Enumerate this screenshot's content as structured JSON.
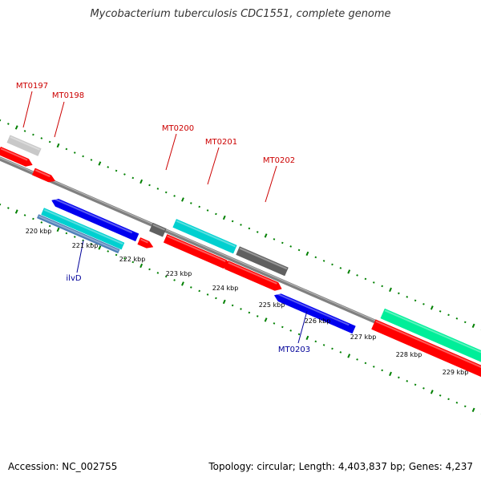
{
  "title": "Mycobacterium tuberculosis CDC1551, complete genome",
  "footer": {
    "accession": "Accession: NC_002755",
    "summary": "Topology: circular; Length: 4,403,837 bp; Genes: 4,237"
  },
  "colors": {
    "backbone": "#808080",
    "tick": "#008000",
    "label_red": "#cc0000",
    "label_blue": "#000099",
    "red": "#ff0000",
    "blue": "#0000ee",
    "cyan": "#00d0d0",
    "gray": "#606060",
    "lightgray": "#c8c8c8",
    "teal": "#00ee99",
    "steelblue": "#4e7fb8"
  },
  "scale_labels": [
    {
      "key": "t220",
      "text": "220 kbp"
    },
    {
      "key": "t221",
      "text": "221 kbp"
    },
    {
      "key": "t222",
      "text": "222 kbp"
    },
    {
      "key": "t223",
      "text": "223 kbp"
    },
    {
      "key": "t224",
      "text": "224 kbp"
    },
    {
      "key": "t225",
      "text": "225 kbp"
    },
    {
      "key": "t226",
      "text": "226 kbp"
    },
    {
      "key": "t227",
      "text": "227 kbp"
    },
    {
      "key": "t228",
      "text": "228 kbp"
    },
    {
      "key": "t229",
      "text": "229 kbp"
    }
  ],
  "gene_labels": [
    {
      "key": "g197",
      "text": "MT0197",
      "color": "red"
    },
    {
      "key": "g198",
      "text": "MT0198",
      "color": "red"
    },
    {
      "key": "g200",
      "text": "MT0200",
      "color": "red"
    },
    {
      "key": "g201",
      "text": "MT0201",
      "color": "red"
    },
    {
      "key": "g202",
      "text": "MT0202",
      "color": "red"
    },
    {
      "key": "gilvD",
      "text": "ilvD",
      "color": "blue"
    },
    {
      "key": "g203",
      "text": "MT0203",
      "color": "blue"
    }
  ],
  "features": [
    {
      "key": "f1",
      "color": "lightgray",
      "arrow": false
    },
    {
      "key": "f2",
      "color": "red",
      "arrow": true
    },
    {
      "key": "f3",
      "color": "red",
      "arrow": true
    },
    {
      "key": "f4",
      "color": "blue",
      "arrow": true
    },
    {
      "key": "f5",
      "color": "cyan",
      "arrow": false
    },
    {
      "key": "f6",
      "color": "steelblue",
      "arrow": false
    },
    {
      "key": "f7",
      "color": "gray",
      "arrow": false
    },
    {
      "key": "f8",
      "color": "red",
      "arrow": true
    },
    {
      "key": "f9",
      "color": "cyan",
      "arrow": false
    },
    {
      "key": "f10",
      "color": "red",
      "arrow": true
    },
    {
      "key": "f11",
      "color": "gray",
      "arrow": false
    },
    {
      "key": "f12",
      "color": "red",
      "arrow": true
    },
    {
      "key": "f13",
      "color": "blue",
      "arrow": true
    },
    {
      "key": "f14",
      "color": "teal",
      "arrow": false
    },
    {
      "key": "f15",
      "color": "red",
      "arrow": false
    }
  ]
}
